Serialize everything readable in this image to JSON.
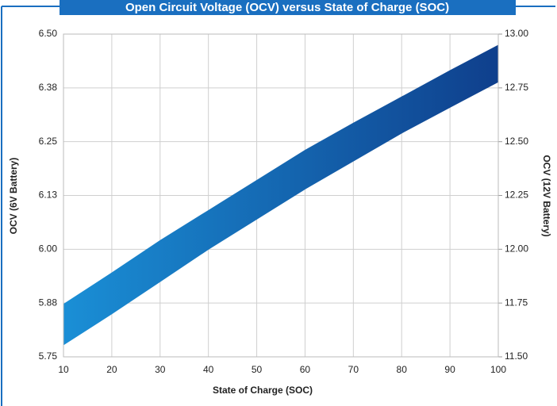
{
  "chart_data": {
    "type": "band",
    "title": "Open Circuit Voltage (OCV) versus State of Charge (SOC)",
    "xlabel": "State of Charge (SOC)",
    "ylabel": "OCV (6V Battery)",
    "y2label": "OCV (12V Battery)",
    "x": [
      10,
      20,
      30,
      40,
      50,
      60,
      70,
      80,
      90,
      100
    ],
    "series": [
      {
        "color": "#1a8fd6",
        "values": [
          5.872,
          5.945,
          6.02,
          6.09,
          6.16,
          6.23,
          6.293,
          6.354,
          6.415,
          6.474
        ]
      },
      {
        "color": "#0f3f8c",
        "values": [
          5.778,
          5.85,
          5.925,
          6.0,
          6.07,
          6.14,
          6.205,
          6.27,
          6.33,
          6.389
        ]
      }
    ],
    "xlim": [
      10,
      100
    ],
    "xticks": [
      10,
      20,
      30,
      40,
      50,
      60,
      70,
      80,
      90,
      100
    ],
    "ylim": [
      5.75,
      6.5
    ],
    "yticks": [
      {
        "value": 5.75,
        "label": "5.75"
      },
      {
        "value": 5.875,
        "label": "5.88"
      },
      {
        "value": 6,
        "label": "6.00"
      },
      {
        "value": 6.125,
        "label": "6.13"
      },
      {
        "value": 6.25,
        "label": "6.25"
      },
      {
        "value": 6.375,
        "label": "6.38"
      },
      {
        "value": 6.5,
        "label": "6.50"
      }
    ],
    "y2lim": [
      11.5,
      13
    ],
    "y2ticks": [
      {
        "value": 11.5,
        "label": "11.50"
      },
      {
        "value": 11.75,
        "label": "11.75"
      },
      {
        "value": 12,
        "label": "12.00"
      },
      {
        "value": 12.25,
        "label": "12.25"
      },
      {
        "value": 12.5,
        "label": "12.50"
      },
      {
        "value": 12.75,
        "label": "12.75"
      },
      {
        "value": 13,
        "label": "13.00"
      }
    ],
    "grid": true
  }
}
